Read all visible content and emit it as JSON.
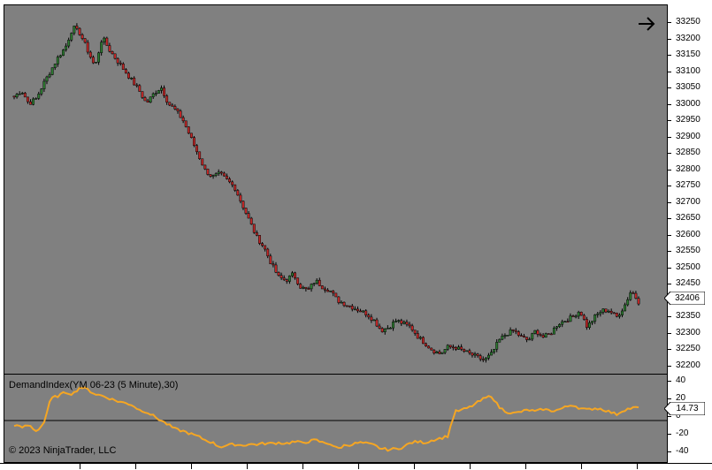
{
  "indicator_title": "DemandIndex(YM 06-23 (5 Minute),30)",
  "copyright": "© 2023 NinjaTrader, LLC",
  "nav_icon": "arrow-right-icon",
  "colors": {
    "panel_bg": "#808080",
    "up_candle": "#2e7d32",
    "down_candle": "#c62828",
    "wick": "#000000",
    "indicator_line": "#f5a623"
  },
  "price_axis": {
    "labels": [
      "33250",
      "33200",
      "33150",
      "33100",
      "33050",
      "33000",
      "32950",
      "32900",
      "32850",
      "32800",
      "32750",
      "32700",
      "32650",
      "32600",
      "32550",
      "32500",
      "32450",
      "32400",
      "32350",
      "32300",
      "32250",
      "32200"
    ],
    "last_price": "32406"
  },
  "indicator_axis": {
    "labels": [
      "40",
      "20",
      "0",
      "-20",
      "-40"
    ],
    "last_value": "14.73"
  },
  "chart_data": [
    {
      "type": "candlestick",
      "title": "",
      "ylim": [
        32185,
        33295
      ],
      "close_path": [
        33020,
        33040,
        33000,
        33015,
        33060,
        33100,
        33140,
        33170,
        33230,
        33210,
        33160,
        33110,
        33200,
        33160,
        33130,
        33100,
        33070,
        33040,
        33000,
        33030,
        33050,
        33000,
        32980,
        32950,
        32900,
        32850,
        32800,
        32780,
        32790,
        32770,
        32750,
        32700,
        32650,
        32600,
        32570,
        32520,
        32480,
        32470,
        32490,
        32450,
        32440,
        32470,
        32450,
        32440,
        32410,
        32400,
        32390,
        32380,
        32370,
        32350,
        32320,
        32330,
        32350,
        32340,
        32330,
        32300,
        32280,
        32260,
        32250,
        32270,
        32270,
        32260,
        32250,
        32240,
        32230,
        32250,
        32290,
        32310,
        32320,
        32300,
        32290,
        32320,
        32300,
        32310,
        32340,
        32350,
        32360,
        32380,
        32330,
        32360,
        32380,
        32380,
        32360,
        32390,
        32440,
        32406
      ]
    },
    {
      "type": "line",
      "title": "",
      "ylim": [
        -44,
        44
      ],
      "series": [
        {
          "values": [
            -5,
            -8,
            -5,
            -12,
            -4,
            25,
            28,
            32,
            30,
            38,
            35,
            30,
            28,
            25,
            22,
            20,
            18,
            12,
            10,
            5,
            0,
            -5,
            -10,
            -12,
            -15,
            -18,
            -22,
            -25,
            -30,
            -28,
            -27,
            -28,
            -27,
            -27,
            -26,
            -26,
            -25,
            -26,
            -24,
            -25,
            -24,
            -22,
            -25,
            -26,
            -32,
            -28,
            -27,
            -25,
            -26,
            -28,
            -32,
            -33,
            -32,
            -30,
            -25,
            -24,
            -25,
            -22,
            -20,
            -18,
            10,
            12,
            15,
            20,
            25,
            28,
            15,
            10,
            8,
            10,
            12,
            10,
            13,
            11,
            12,
            15,
            18,
            14,
            12,
            14,
            13,
            10,
            7,
            12,
            14,
            14.73
          ]
        }
      ]
    }
  ]
}
